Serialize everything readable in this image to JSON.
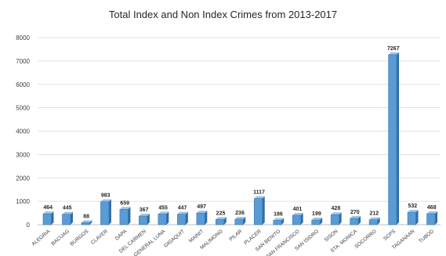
{
  "chart_data": {
    "type": "bar",
    "title": "Total Index and Non Index Crimes from 2013-2017",
    "categories": [
      "ALEGRIA",
      "BACUAG",
      "BURGOS",
      "CLAVER",
      "DAPA",
      "DEL CARMEN",
      "GENERAL LUNA",
      "GIGAQUIT",
      "MAINIT",
      "MALIMONO",
      "PILAR",
      "PLACER",
      "SAN BENITO",
      "SAN FRANCISCO",
      "SAN ISIDRO",
      "SISON",
      "STA. MONICA",
      "SOCORRO",
      "SCPS",
      "TAGANAAN",
      "TUBOD"
    ],
    "values": [
      464,
      445,
      88,
      983,
      659,
      367,
      455,
      447,
      497,
      225,
      236,
      1117,
      186,
      401,
      199,
      428,
      270,
      212,
      7267,
      532,
      468
    ],
    "yticks": [
      0,
      1000,
      2000,
      3000,
      4000,
      5000,
      6000,
      7000,
      8000
    ],
    "ylim": [
      0,
      8000
    ],
    "grid": true,
    "colors": {
      "bar_front": "#5b9bd5",
      "bar_side": "#2f6ea8",
      "bar_top": "#9cc3e6",
      "grid": "#d9d9d9"
    }
  }
}
